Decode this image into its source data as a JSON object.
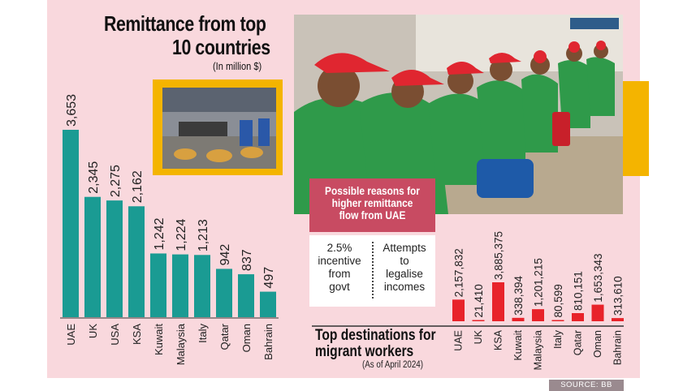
{
  "title_line1": "Remittance from top",
  "title_line2": "10 countries",
  "unit": "(In million $)",
  "reasons": {
    "heading": [
      "Possible reasons for",
      "higher remittance",
      "flow from UAE"
    ],
    "items": [
      [
        "2.5%",
        "incentive",
        "from",
        "govt"
      ],
      [
        "Attempts",
        "to",
        "legalise",
        "incomes"
      ]
    ]
  },
  "migrant_title_line1": "Top destinations for",
  "migrant_title_line2": "migrant workers",
  "migrant_subtitle": "(As of April 2024)",
  "source": "SOURCE: BB",
  "colors": {
    "panel": "#f9d8dd",
    "teal": "#1a9b93",
    "red": "#e8232a",
    "frame": "#f4b400"
  },
  "chart_data": [
    {
      "type": "bar",
      "title": "Remittance from top 10 countries",
      "ylabel": "In million $",
      "categories": [
        "UAE",
        "UK",
        "USA",
        "KSA",
        "Kuwait",
        "Malaysia",
        "Italy",
        "Qatar",
        "Oman",
        "Bahrain"
      ],
      "values": [
        3653,
        2345,
        2275,
        2162,
        1242,
        1224,
        1213,
        942,
        837,
        497
      ],
      "value_labels": [
        "3,653",
        "2,345",
        "2,275",
        "2,162",
        "1,242",
        "1,224",
        "1,213",
        "942",
        "837",
        "497"
      ],
      "ylim": [
        0,
        3653
      ]
    },
    {
      "type": "bar",
      "title": "Top destinations for migrant workers",
      "subtitle": "As of April 2024",
      "categories": [
        "UAE",
        "UK",
        "KSA",
        "Kuwait",
        "Malaysia",
        "Italy",
        "Qatar",
        "Oman",
        "Bahrain"
      ],
      "values": [
        2157832,
        21410,
        3885375,
        338394,
        1201215,
        80599,
        810151,
        1653343,
        313610
      ],
      "value_labels": [
        "2,157,832",
        "21,410",
        "3,885,375",
        "338,394",
        "1,201,215",
        "80,599",
        "810,151",
        "1,653,343",
        "313,610"
      ],
      "ylim": [
        0,
        3885375
      ]
    }
  ]
}
